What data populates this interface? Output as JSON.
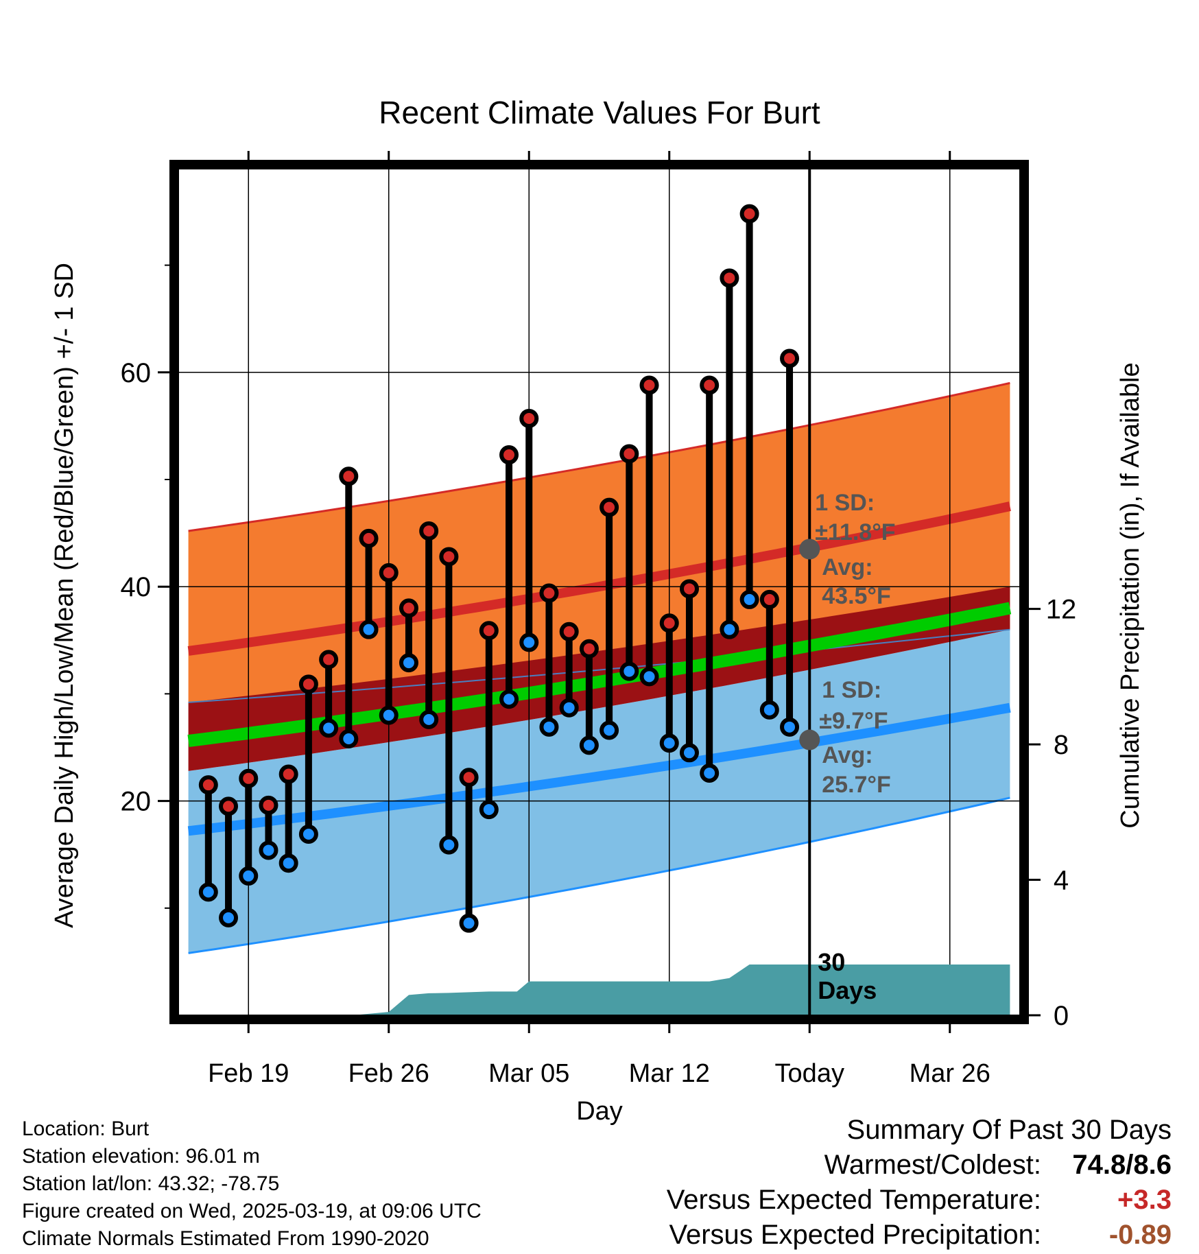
{
  "chart_data": {
    "type": "line",
    "title": "Recent Climate Values For Burt",
    "xlabel": "Day",
    "ylabel_left": "Average Daily High/Low/Mean (Red/Blue/Green) +/- 1 SD",
    "ylabel_right": "Cumulative Precipitation (in), If Available",
    "x_range": [
      -3.5,
      38.5
    ],
    "ylim_left": [
      0,
      79
    ],
    "ylim_right": [
      0,
      25
    ],
    "x_ticks": [
      {
        "day": 0,
        "label": "Feb 19"
      },
      {
        "day": 7,
        "label": "Feb 26"
      },
      {
        "day": 14,
        "label": "Mar 05"
      },
      {
        "day": 21,
        "label": "Mar 12"
      },
      {
        "day": 28,
        "label": "Today"
      },
      {
        "day": 35,
        "label": "Mar 26"
      }
    ],
    "y_ticks_left": [
      20,
      40,
      60
    ],
    "y_minor_ticks_left": [
      10,
      30,
      50,
      70
    ],
    "y_ticks_right": [
      0,
      4,
      8,
      12
    ],
    "grid": true,
    "today_day": 28,
    "normals": {
      "day": [
        -3,
        38
      ],
      "high_mean": [
        34.0,
        47.5
      ],
      "high_sd_upper": [
        45.2,
        59.0
      ],
      "high_sd_lower": [
        29.2,
        36.0
      ],
      "low_mean": [
        17.2,
        28.7
      ],
      "low_sd_upper": [
        22.8,
        36.0
      ],
      "low_sd_lower": [
        5.8,
        20.3
      ],
      "mean_mean": [
        25.6,
        38.0
      ],
      "mean_band_lower": [
        22.8,
        36.0
      ],
      "mean_band_upper": [
        29.2,
        40.0
      ]
    },
    "series": [
      {
        "name": "High",
        "day": [
          -2,
          -1,
          0,
          1,
          2,
          3,
          4,
          5,
          6,
          7,
          8,
          9,
          10,
          11,
          12,
          13,
          14,
          15,
          16,
          17,
          18,
          19,
          20,
          21,
          22,
          23,
          24,
          25,
          26,
          27
        ],
        "values": [
          21.5,
          19.5,
          22.1,
          19.6,
          22.5,
          30.9,
          33.2,
          50.3,
          44.5,
          41.3,
          38.0,
          45.2,
          42.8,
          22.2,
          35.9,
          52.3,
          55.7,
          39.4,
          35.8,
          34.2,
          47.4,
          52.4,
          58.8,
          36.6,
          39.8,
          58.8,
          68.8,
          74.8,
          38.8,
          61.3
        ]
      },
      {
        "name": "Low",
        "day": [
          -2,
          -1,
          0,
          1,
          2,
          3,
          4,
          5,
          6,
          7,
          8,
          9,
          10,
          11,
          12,
          13,
          14,
          15,
          16,
          17,
          18,
          19,
          20,
          21,
          22,
          23,
          24,
          25,
          26,
          27
        ],
        "values": [
          11.5,
          9.1,
          13.0,
          15.4,
          14.2,
          16.9,
          26.8,
          25.8,
          36.0,
          28.0,
          32.9,
          27.6,
          15.9,
          8.6,
          19.2,
          29.5,
          34.8,
          26.9,
          28.7,
          25.2,
          26.6,
          32.1,
          31.6,
          25.4,
          24.5,
          22.6,
          36.0,
          38.8,
          28.5,
          26.9
        ]
      }
    ],
    "precipitation": {
      "day": [
        -3,
        5.2,
        7,
        8,
        9,
        10,
        12,
        13.4,
        14,
        15,
        20,
        23,
        24,
        25,
        26,
        27,
        38
      ],
      "values": [
        0,
        0,
        0.1,
        0.6,
        0.65,
        0.66,
        0.7,
        0.7,
        1.0,
        1.0,
        1.0,
        1.0,
        1.1,
        1.5,
        1.5,
        1.5,
        1.5
      ]
    },
    "annotations": {
      "days_label": "30\nDays",
      "high_sd": "1 SD:",
      "high_sd_value": "±11.8°F",
      "high_avg": "Avg:",
      "high_avg_value": "43.5°F",
      "low_sd": "1 SD:",
      "low_sd_value": "±9.7°F",
      "low_avg": "Avg:",
      "low_avg_value": "25.7°F",
      "high_today_mean": 43.5,
      "low_today_mean": 25.7
    },
    "colors": {
      "high_band": "#f47b2f",
      "high_line": "#d42a27",
      "low_band": "#80bfe6",
      "low_line": "#1e90ff",
      "mean_band": "#9b1114",
      "mean_line": "#00cc00",
      "precip": "#4a9da4",
      "high_dot": "#d42a27",
      "low_dot": "#1e90ff",
      "annotation": "#555555"
    }
  },
  "footer": {
    "location": "Location: Burt",
    "elevation": "Station elevation: 96.01 m",
    "latlon": "Station lat/lon: 43.32; -78.75",
    "created": "Figure created on Wed, 2025-03-19, at 09:06 UTC",
    "normals": "Climate Normals Estimated From 1990-2020"
  },
  "summary": {
    "title": "Summary Of Past 30 Days",
    "warmest_label": "Warmest/Coldest:",
    "warmest_value": "74.8/8.6",
    "temp_label": "Versus Expected Temperature:",
    "temp_value": "+3.3",
    "temp_color": "#c62828",
    "precip_label": "Versus Expected Precipitation:",
    "precip_value": "-0.89",
    "precip_color": "#a0522d"
  }
}
